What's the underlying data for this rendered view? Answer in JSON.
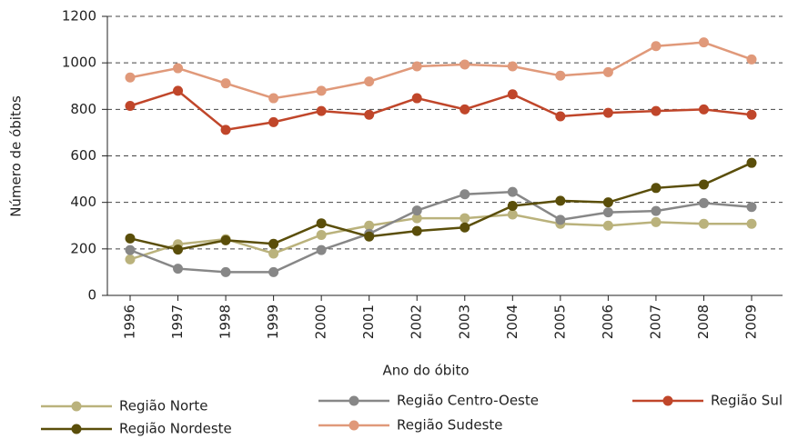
{
  "chart_data": {
    "type": "line",
    "xlabel": "Ano do óbito",
    "ylabel": "Número de óbitos",
    "categories": [
      "1996",
      "1997",
      "1998",
      "1999",
      "2000",
      "2001",
      "2002",
      "2003",
      "2004",
      "2005",
      "2006",
      "2007",
      "2008",
      "2009"
    ],
    "series": [
      {
        "name": "Região Norte",
        "color": "#bab27c",
        "values": [
          155,
          220,
          242,
          180,
          260,
          300,
          332,
          332,
          348,
          308,
          300,
          315,
          308,
          308
        ]
      },
      {
        "name": "Região Centro-Oeste",
        "color": "#878787",
        "values": [
          195,
          115,
          100,
          100,
          195,
          265,
          365,
          435,
          445,
          325,
          357,
          363,
          397,
          380
        ]
      },
      {
        "name": "Região Sul",
        "color": "#c0462a",
        "values": [
          815,
          880,
          712,
          745,
          793,
          777,
          848,
          800,
          865,
          770,
          785,
          793,
          800,
          777
        ]
      },
      {
        "name": "Região Nordeste",
        "color": "#5a4e0a",
        "values": [
          245,
          197,
          237,
          222,
          310,
          253,
          277,
          292,
          385,
          407,
          400,
          462,
          477,
          570
        ]
      },
      {
        "name": "Região Sudeste",
        "color": "#e0997a",
        "values": [
          937,
          977,
          912,
          848,
          880,
          920,
          985,
          993,
          985,
          945,
          960,
          1072,
          1088,
          1015
        ]
      }
    ],
    "ylim": [
      0,
      1200
    ],
    "yticks": [
      0,
      200,
      400,
      600,
      800,
      1000,
      1200
    ],
    "grid": true,
    "legend": "bottom"
  }
}
